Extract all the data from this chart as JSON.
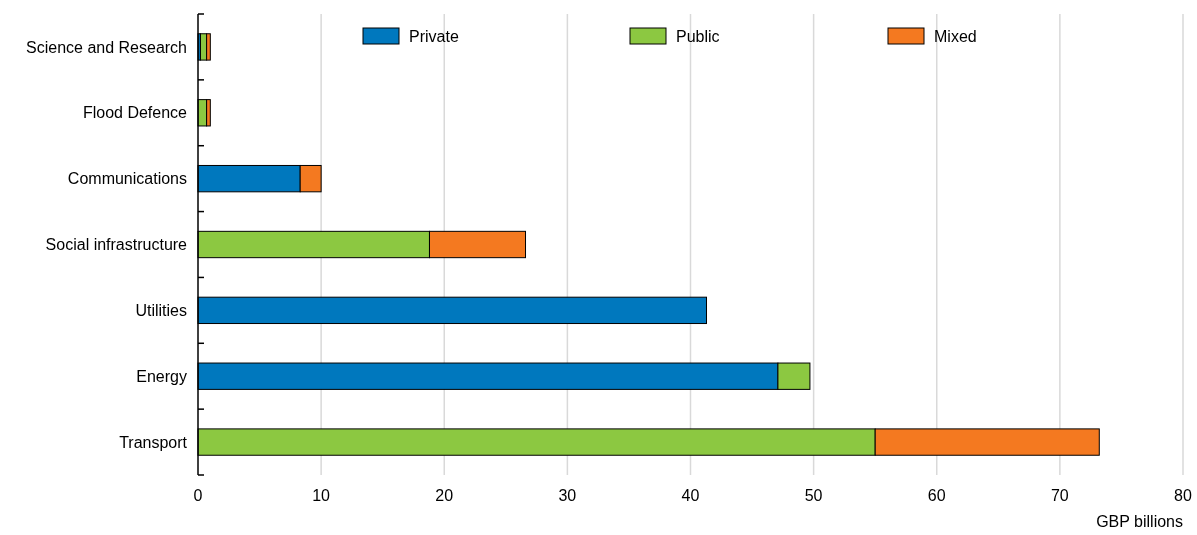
{
  "chart_data": {
    "type": "bar",
    "orientation": "horizontal",
    "stacked": true,
    "categories": [
      "Science and Research",
      "Flood Defence",
      "Communications",
      "Social infrastructure",
      "Utilities",
      "Energy",
      "Transport"
    ],
    "series": [
      {
        "name": "Private",
        "color": "#0078be",
        "values": [
          0.2,
          0,
          8.3,
          0,
          41.3,
          47.1,
          0
        ]
      },
      {
        "name": "Public",
        "color": "#8cc841",
        "values": [
          0.5,
          0.7,
          0,
          18.8,
          0,
          2.6,
          55
        ]
      },
      {
        "name": "Mixed",
        "color": "#f47920",
        "values": [
          0.3,
          0.3,
          1.7,
          7.8,
          0,
          0,
          18.2
        ]
      }
    ],
    "xlim": [
      0,
      80
    ],
    "xticks": [
      0,
      10,
      20,
      30,
      40,
      50,
      60,
      70,
      80
    ],
    "xlabel": "GBP billions",
    "grid": "x",
    "legend": "top"
  }
}
